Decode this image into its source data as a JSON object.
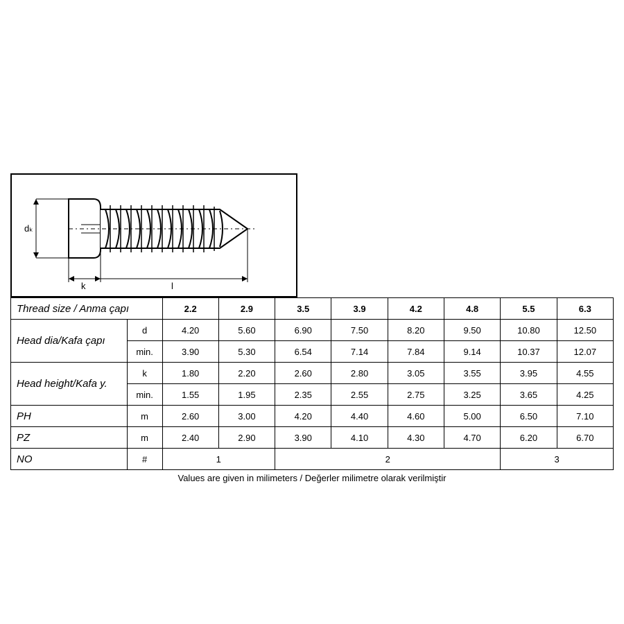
{
  "diagram": {
    "labels": {
      "d": "dₖ",
      "k": "k",
      "l": "l"
    }
  },
  "table": {
    "header": {
      "label": "Thread size  / Anma çapı",
      "sizes": [
        "2.2",
        "2.9",
        "3.5",
        "3.9",
        "4.2",
        "4.8",
        "5.5",
        "6.3"
      ]
    },
    "rows": [
      {
        "label": "Head dia/Kafa çapı",
        "sub": [
          {
            "sym": "d",
            "vals": [
              "4.20",
              "5.60",
              "6.90",
              "7.50",
              "8.20",
              "9.50",
              "10.80",
              "12.50"
            ]
          },
          {
            "sym": "min.",
            "vals": [
              "3.90",
              "5.30",
              "6.54",
              "7.14",
              "7.84",
              "9.14",
              "10.37",
              "12.07"
            ]
          }
        ]
      },
      {
        "label": "Head height/Kafa y.",
        "sub": [
          {
            "sym": "k",
            "vals": [
              "1.80",
              "2.20",
              "2.60",
              "2.80",
              "3.05",
              "3.55",
              "3.95",
              "4.55"
            ]
          },
          {
            "sym": "min.",
            "vals": [
              "1.55",
              "1.95",
              "2.35",
              "2.55",
              "2.75",
              "3.25",
              "3.65",
              "4.25"
            ]
          }
        ]
      },
      {
        "label": "PH",
        "sub": [
          {
            "sym": "m",
            "vals": [
              "2.60",
              "3.00",
              "4.20",
              "4.40",
              "4.60",
              "5.00",
              "6.50",
              "7.10"
            ]
          }
        ]
      },
      {
        "label": "PZ",
        "sub": [
          {
            "sym": "m",
            "vals": [
              "2.40",
              "2.90",
              "3.90",
              "4.10",
              "4.30",
              "4.70",
              "6.20",
              "6.70"
            ]
          }
        ]
      }
    ],
    "no_row": {
      "label": "NO",
      "sym": "#",
      "groups": [
        {
          "span": 2,
          "val": "1"
        },
        {
          "span": 4,
          "val": "2"
        },
        {
          "span": 2,
          "val": "3"
        }
      ]
    },
    "footnote": "Values are given in milimeters / Değerler milimetre olarak verilmiştir"
  },
  "style": {
    "border_color": "#000000",
    "bg_color": "#ffffff",
    "font_family": "Arial",
    "header_fontsize": 14,
    "cell_fontsize": 13
  }
}
